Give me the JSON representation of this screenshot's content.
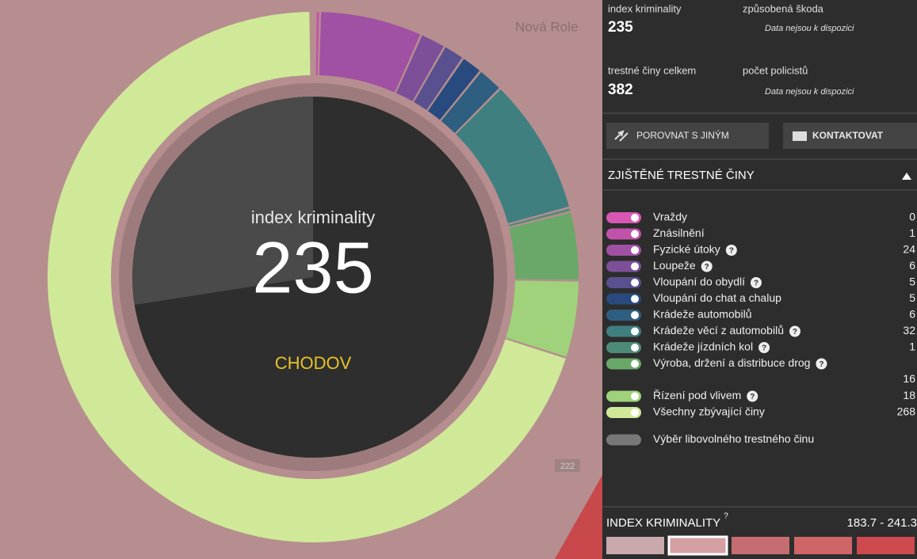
{
  "map": {
    "labels": [
      "Nová Role",
      "222"
    ]
  },
  "donut": {
    "label": "index kriminality",
    "place": "CHODOV"
  },
  "stats": [
    {
      "label": "index kriminality",
      "value": "235"
    },
    {
      "label": "způsobená škoda",
      "value": "Data nejsou k dispozici"
    },
    {
      "label": "trestné činy celkem",
      "value": "382"
    },
    {
      "label": "počet policistů",
      "value": "Data nejsou k dispozici"
    }
  ],
  "buttons": [
    "POROVNAT S JINÝM",
    "KONTAKTOVAT"
  ],
  "section": "ZJIŠTĚNÉ TRESTNÉ ČINY",
  "help_icon": "?",
  "crimes": [
    {
      "name": "Vraždy",
      "count": 0,
      "color": "#d957b4",
      "help": false
    },
    {
      "name": "Znásilnění",
      "count": 1,
      "color": "#c152a9",
      "help": false
    },
    {
      "name": "Fyzické útoky",
      "count": 24,
      "color": "#a051a3",
      "help": true
    },
    {
      "name": "Loupeže",
      "count": 6,
      "color": "#7d4f99",
      "help": true
    },
    {
      "name": "Vloupání do obydlí",
      "count": 5,
      "color": "#58508f",
      "help": true
    },
    {
      "name": "Vloupání do chat a chalup",
      "count": 5,
      "color": "#284a7e",
      "help": false
    },
    {
      "name": "Krádeže automobilů",
      "count": 6,
      "color": "#2f5f80",
      "help": false
    },
    {
      "name": "Krádeže věcí z automobilů",
      "count": 32,
      "color": "#3f7f80",
      "help": true
    },
    {
      "name": "Krádeže jízdních kol",
      "count": 1,
      "color": "#4e8a78",
      "help": true
    },
    {
      "name": "Výroba, držení a distribuce drog",
      "count": 16,
      "color": "#6aa86a",
      "help": true
    },
    {
      "name": "Řízení pod vlivem",
      "count": 18,
      "color": "#9fd27a",
      "help": true
    },
    {
      "name": "Všechny zbývající činy",
      "count": 268,
      "color": "#cfe998",
      "help": false
    }
  ],
  "other": "Výběr libovolného trestného činu",
  "footer": {
    "title": "INDEX KRIMINALITY",
    "range": "183.7 - 241.3",
    "scale": [
      "#c9a9ab",
      "#d4a0a3",
      "#c56c70",
      "#d06568",
      "#cf4a4e"
    ],
    "selected": 1
  }
}
